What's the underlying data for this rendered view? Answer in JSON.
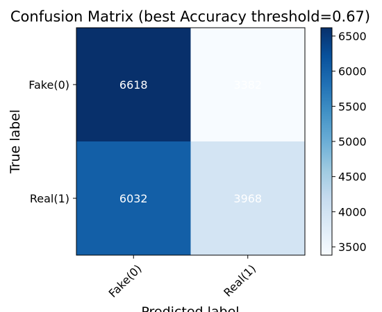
{
  "chart_data": {
    "type": "heatmap",
    "title": "Confusion Matrix (best Accuracy threshold=0.67)",
    "xlabel": "Predicted label",
    "ylabel": "True label",
    "x_categories": [
      "Fake(0)",
      "Real(1)"
    ],
    "y_categories": [
      "Fake(0)",
      "Real(1)"
    ],
    "values": [
      [
        6618,
        3382
      ],
      [
        6032,
        3968
      ]
    ],
    "value_range": [
      3382,
      6618
    ],
    "colormap": "Blues",
    "colorbar_ticks": [
      3500,
      4000,
      4500,
      5000,
      5500,
      6000,
      6500
    ],
    "colors": {
      "min": "#f7fbff",
      "max": "#08306b",
      "text": "#ffffff"
    }
  }
}
